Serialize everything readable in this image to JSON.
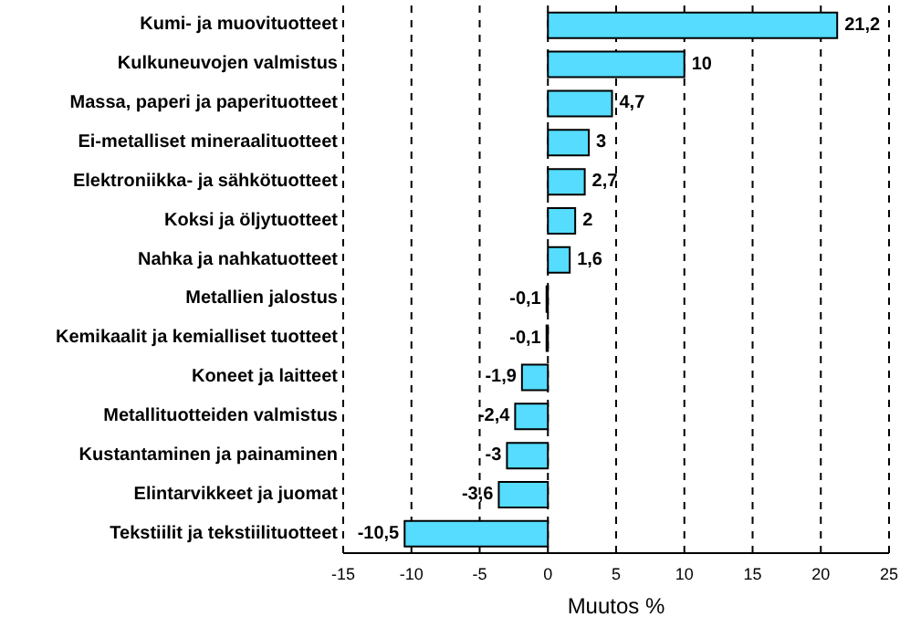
{
  "chart_data": {
    "type": "bar",
    "orientation": "horizontal",
    "xlabel": "Muutos %",
    "categories": [
      "Kumi- ja muovituotteet",
      "Kulkuneuvojen valmistus",
      "Massa, paperi ja paperituotteet",
      "Ei-metalliset mineraalituotteet",
      "Elektroniikka- ja sähkötuotteet",
      "Koksi ja öljytuotteet",
      "Nahka ja nahkatuotteet",
      "Metallien jalostus",
      "Kemikaalit ja kemialliset tuotteet",
      "Koneet ja laitteet",
      "Metallituotteiden valmistus",
      "Kustantaminen ja painaminen",
      "Elintarvikkeet ja juomat",
      "Tekstiilit ja tekstiilituotteet"
    ],
    "values": [
      21.2,
      10,
      4.7,
      3,
      2.7,
      2,
      1.6,
      -0.1,
      -0.1,
      -1.9,
      -2.4,
      -3,
      -3.6,
      -10.5
    ],
    "value_labels": [
      "21,2",
      "10",
      "4,7",
      "3",
      "2,7",
      "2",
      "1,6",
      "-0,1",
      "-0,1",
      "-1,9",
      "-2,4",
      "-3",
      "-3,6",
      "-10,5"
    ],
    "color": "#55dcff",
    "xlim": [
      -15,
      25
    ],
    "xticks": [
      -15,
      -10,
      -5,
      0,
      5,
      10,
      15,
      20,
      25
    ],
    "grid": "x"
  }
}
